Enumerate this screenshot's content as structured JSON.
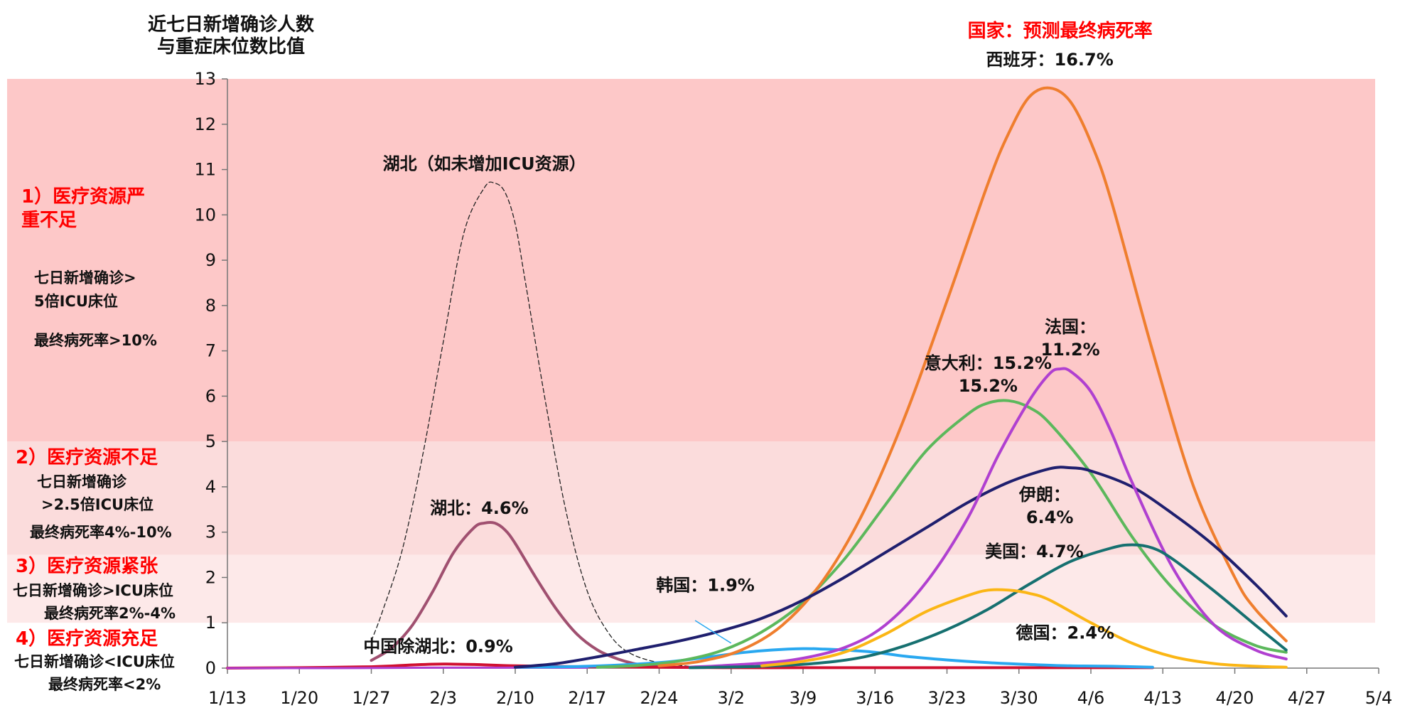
{
  "chart_data": {
    "type": "line",
    "ylabel": [
      "近七日新增确诊人数",
      "与重症床位数比值"
    ],
    "legend_title": "国家：预测最终病死率",
    "x_ticks": [
      "1/13",
      "1/20",
      "1/27",
      "2/3",
      "2/10",
      "2/17",
      "2/24",
      "3/2",
      "3/9",
      "3/16",
      "3/23",
      "3/30",
      "4/6",
      "4/13",
      "4/20",
      "4/27",
      "5/4"
    ],
    "ylim": [
      0,
      13
    ],
    "y_ticks": [
      0,
      1,
      2,
      3,
      4,
      5,
      6,
      7,
      8,
      9,
      10,
      11,
      12,
      13
    ],
    "bands": [
      {
        "from": 5,
        "to": 13,
        "color": "#fdc8c8",
        "title": [
          "1）医疗资源严",
          "重不足"
        ],
        "desc": [
          "七日新增确诊>",
          "5倍ICU床位"
        ],
        "rate": "最终病死率>10%"
      },
      {
        "from": 2.5,
        "to": 5,
        "color": "#fbdcdc",
        "title": [
          "2）医疗资源不足"
        ],
        "desc": [
          "七日新增确诊",
          ">2.5倍ICU床位"
        ],
        "rate": "最终病死率4%-10%"
      },
      {
        "from": 1,
        "to": 2.5,
        "color": "#fde9e9",
        "title": [
          "3）医疗资源紧张"
        ],
        "desc": [
          "七日新增确诊>ICU床位"
        ],
        "rate": "最终病死率2%-4%"
      },
      {
        "from": 0,
        "to": 1,
        "color": "#ffffff",
        "title": [
          "4）医疗资源充足"
        ],
        "desc": [
          "七日新增确诊<ICU床位"
        ],
        "rate": "最终病死率<2%"
      }
    ],
    "series": [
      {
        "name": "湖北（如未增加ICU资源）",
        "color": "#222222",
        "dashed": true,
        "width": 1.3,
        "x": [
          14,
          15,
          17,
          19,
          21,
          23,
          25,
          26,
          27,
          28,
          29,
          31,
          33,
          35,
          37,
          39,
          42,
          46
        ],
        "y": [
          0.6,
          1.2,
          2.6,
          4.7,
          7.2,
          9.6,
          10.6,
          10.7,
          10.5,
          9.8,
          8.5,
          5.8,
          3.4,
          1.7,
          0.8,
          0.35,
          0.12,
          0.02
        ]
      },
      {
        "name": "湖北：4.6%",
        "color": "#a05070",
        "width": 4,
        "x": [
          14,
          16,
          18,
          20,
          22,
          24,
          25,
          26,
          27,
          28,
          30,
          32,
          34,
          36,
          38,
          40,
          42
        ],
        "y": [
          0.17,
          0.45,
          0.95,
          1.7,
          2.55,
          3.1,
          3.2,
          3.2,
          3.05,
          2.75,
          2.0,
          1.3,
          0.75,
          0.4,
          0.2,
          0.08,
          0.03
        ]
      },
      {
        "name": "中国除湖北：0.9%",
        "color": "#d01030",
        "width": 4,
        "x": [
          0,
          7,
          14,
          18,
          21,
          24,
          28,
          35,
          42,
          49,
          56,
          63,
          70,
          77,
          84,
          90
        ],
        "y": [
          0,
          0.01,
          0.03,
          0.07,
          0.09,
          0.08,
          0.05,
          0.03,
          0.02,
          0.01,
          0.01,
          0.01,
          0.01,
          0.01,
          0.01,
          0.01
        ]
      },
      {
        "name": "violet-baseline",
        "color": "#b040d0",
        "width": 3,
        "x": [
          0,
          10,
          20,
          30,
          35
        ],
        "y": [
          0,
          0,
          0.01,
          0.01,
          0.01
        ]
      },
      {
        "name": "韩国：1.9%",
        "color": "#29a8f0",
        "width": 4,
        "x": [
          28,
          35,
          42,
          46,
          50,
          53,
          56,
          58,
          60,
          63,
          66,
          70,
          74,
          78,
          82,
          86,
          90
        ],
        "y": [
          0.02,
          0.04,
          0.12,
          0.22,
          0.34,
          0.4,
          0.43,
          0.42,
          0.4,
          0.35,
          0.26,
          0.18,
          0.12,
          0.08,
          0.05,
          0.04,
          0.02
        ]
      },
      {
        "name": "意大利：15.2%",
        "color": "#5cb85c",
        "width": 4,
        "x": [
          36,
          40,
          44,
          48,
          52,
          56,
          60,
          64,
          68,
          72,
          74,
          76,
          78,
          80,
          84,
          88,
          92,
          96,
          100,
          103
        ],
        "y": [
          0.02,
          0.06,
          0.16,
          0.38,
          0.8,
          1.45,
          2.4,
          3.6,
          4.8,
          5.6,
          5.85,
          5.9,
          5.75,
          5.4,
          4.3,
          2.9,
          1.75,
          0.95,
          0.5,
          0.35
        ]
      },
      {
        "name": "西班牙：16.7%",
        "color": "#ef7e2e",
        "width": 4,
        "x": [
          42,
          46,
          50,
          54,
          58,
          62,
          66,
          70,
          74,
          76,
          78,
          80,
          82,
          84,
          86,
          90,
          94,
          98,
          100,
          103
        ],
        "y": [
          0.05,
          0.15,
          0.4,
          0.95,
          1.95,
          3.5,
          5.6,
          8.1,
          10.7,
          11.8,
          12.6,
          12.8,
          12.5,
          11.6,
          10.3,
          7.0,
          4.0,
          2.0,
          1.3,
          0.6
        ]
      },
      {
        "name": "伊朗：6.4%",
        "color": "#1f1f6e",
        "width": 4,
        "x": [
          28,
          32,
          36,
          40,
          44,
          48,
          52,
          56,
          60,
          64,
          68,
          72,
          76,
          80,
          82,
          84,
          88,
          92,
          96,
          100,
          103
        ],
        "y": [
          0.02,
          0.1,
          0.25,
          0.42,
          0.6,
          0.82,
          1.1,
          1.5,
          2.0,
          2.55,
          3.1,
          3.65,
          4.1,
          4.4,
          4.42,
          4.35,
          4.0,
          3.4,
          2.7,
          1.85,
          1.15
        ]
      },
      {
        "name": "法国：11.2%",
        "color": "#b040d0",
        "width": 4,
        "x": [
          45,
          50,
          55,
          60,
          64,
          68,
          72,
          75,
          78,
          80,
          81,
          82,
          84,
          86,
          88,
          92,
          96,
          100,
          103
        ],
        "y": [
          0.02,
          0.08,
          0.18,
          0.45,
          0.95,
          1.9,
          3.3,
          4.7,
          5.9,
          6.5,
          6.6,
          6.55,
          6.1,
          5.2,
          4.1,
          2.2,
          0.95,
          0.4,
          0.2
        ]
      },
      {
        "name": "美国：4.7%",
        "color": "#167070",
        "width": 4,
        "x": [
          45,
          52,
          58,
          62,
          66,
          70,
          74,
          78,
          82,
          86,
          88,
          90,
          92,
          96,
          100,
          103
        ],
        "y": [
          0.01,
          0.04,
          0.12,
          0.25,
          0.5,
          0.85,
          1.3,
          1.85,
          2.35,
          2.65,
          2.72,
          2.65,
          2.4,
          1.7,
          0.95,
          0.4
        ]
      },
      {
        "name": "德国：2.4%",
        "color": "#fbb615",
        "width": 4,
        "x": [
          52,
          56,
          60,
          64,
          68,
          72,
          74,
          76,
          78,
          80,
          84,
          88,
          92,
          96,
          100,
          103
        ],
        "y": [
          0.05,
          0.15,
          0.35,
          0.75,
          1.25,
          1.6,
          1.72,
          1.72,
          1.65,
          1.5,
          1.0,
          0.55,
          0.25,
          0.1,
          0.04,
          0.02
        ]
      }
    ],
    "annotations": [
      {
        "lines": [
          "湖北（如未增加ICU资源）"
        ],
        "x": 25,
        "y": 11.0,
        "anchor": "middle"
      },
      {
        "lines": [
          "湖北：4.6%"
        ],
        "x": 24.5,
        "y": 3.4,
        "anchor": "middle"
      },
      {
        "lines": [
          "中国除湖北：0.9%"
        ],
        "x": 20.5,
        "y": 0.35,
        "anchor": "middle"
      },
      {
        "lines": [
          "韩国：1.9%"
        ],
        "x": 46.5,
        "y": 1.7,
        "anchor": "middle"
      },
      {
        "lines": [
          "意大利：15.2%"
        ],
        "x": 74,
        "y": 6.6,
        "anchor": "middle"
      },
      {
        "lines": [
          "15.2%"
        ],
        "x": 74,
        "y": 6.1,
        "anchor": "middle"
      },
      {
        "lines": [
          "法国："
        ],
        "x": 82,
        "y": 7.4,
        "anchor": "middle"
      },
      {
        "lines": [
          "11.2%"
        ],
        "x": 82,
        "y": 6.9,
        "anchor": "middle"
      },
      {
        "lines": [
          "西班牙：16.7%"
        ],
        "x": 80,
        "y": 13.3,
        "anchor": "middle"
      },
      {
        "lines": [
          "伊朗："
        ],
        "x": 79.5,
        "y": 3.7,
        "anchor": "middle"
      },
      {
        "lines": [
          "6.4%"
        ],
        "x": 80,
        "y": 3.2,
        "anchor": "middle"
      },
      {
        "lines": [
          "美国：4.7%"
        ],
        "x": 78.5,
        "y": 2.45,
        "anchor": "middle"
      },
      {
        "lines": [
          "德国：2.4%"
        ],
        "x": 81.5,
        "y": 0.65,
        "anchor": "middle"
      }
    ]
  }
}
